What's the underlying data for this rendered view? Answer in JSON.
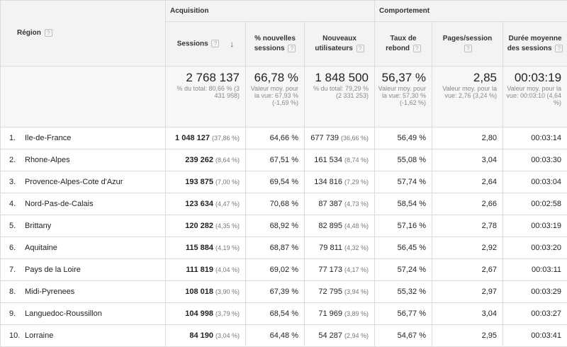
{
  "header": {
    "region_label": "Région",
    "group_acquisition": "Acquisition",
    "group_behavior": "Comportement",
    "help_glyph": "?",
    "sort_glyph": "↓",
    "columns": [
      {
        "label": "Sessions"
      },
      {
        "label": "% nouvelles sessions"
      },
      {
        "label": "Nouveaux utilisateurs"
      },
      {
        "label": "Taux de rebond"
      },
      {
        "label": "Pages/session"
      },
      {
        "label": "Durée moyenne des sessions"
      }
    ]
  },
  "totals": [
    {
      "value": "2 768 137",
      "sub": "% du total: 80,66 % (3 431 958)"
    },
    {
      "value": "66,78 %",
      "sub": "Valeur moy. pour la vue: 67,93 % (-1,69 %)"
    },
    {
      "value": "1 848 500",
      "sub": "% du total: 79,29 % (2 331 253)"
    },
    {
      "value": "56,37 %",
      "sub": "Valeur moy. pour la vue: 57,30 % (-1,62 %)"
    },
    {
      "value": "2,85",
      "sub": "Valeur moy. pour la vue: 2,76 (3,24 %)"
    },
    {
      "value": "00:03:19",
      "sub": "Valeur moy. pour la vue: 00:03:10 (4,64 %)"
    }
  ],
  "rows": [
    {
      "index": "1.",
      "region": "Ile-de-France",
      "sessions": "1 048 127",
      "sessions_pct": "(37,86 %)",
      "new_sessions": "64,66 %",
      "new_users": "677 739",
      "new_users_pct": "(36,66 %)",
      "bounce": "56,49 %",
      "pages": "2,80",
      "duration": "00:03:14"
    },
    {
      "index": "2.",
      "region": "Rhone-Alpes",
      "sessions": "239 262",
      "sessions_pct": "(8,64 %)",
      "new_sessions": "67,51 %",
      "new_users": "161 534",
      "new_users_pct": "(8,74 %)",
      "bounce": "55,08 %",
      "pages": "3,04",
      "duration": "00:03:30"
    },
    {
      "index": "3.",
      "region": "Provence-Alpes-Cote d'Azur",
      "sessions": "193 875",
      "sessions_pct": "(7,00 %)",
      "new_sessions": "69,54 %",
      "new_users": "134 816",
      "new_users_pct": "(7,29 %)",
      "bounce": "57,74 %",
      "pages": "2,64",
      "duration": "00:03:04"
    },
    {
      "index": "4.",
      "region": "Nord-Pas-de-Calais",
      "sessions": "123 634",
      "sessions_pct": "(4,47 %)",
      "new_sessions": "70,68 %",
      "new_users": "87 387",
      "new_users_pct": "(4,73 %)",
      "bounce": "58,54 %",
      "pages": "2,66",
      "duration": "00:02:58"
    },
    {
      "index": "5.",
      "region": "Brittany",
      "sessions": "120 282",
      "sessions_pct": "(4,35 %)",
      "new_sessions": "68,92 %",
      "new_users": "82 895",
      "new_users_pct": "(4,48 %)",
      "bounce": "57,16 %",
      "pages": "2,78",
      "duration": "00:03:19"
    },
    {
      "index": "6.",
      "region": "Aquitaine",
      "sessions": "115 884",
      "sessions_pct": "(4,19 %)",
      "new_sessions": "68,87 %",
      "new_users": "79 811",
      "new_users_pct": "(4,32 %)",
      "bounce": "56,45 %",
      "pages": "2,92",
      "duration": "00:03:20"
    },
    {
      "index": "7.",
      "region": "Pays de la Loire",
      "sessions": "111 819",
      "sessions_pct": "(4,04 %)",
      "new_sessions": "69,02 %",
      "new_users": "77 173",
      "new_users_pct": "(4,17 %)",
      "bounce": "57,24 %",
      "pages": "2,67",
      "duration": "00:03:11"
    },
    {
      "index": "8.",
      "region": "Midi-Pyrenees",
      "sessions": "108 018",
      "sessions_pct": "(3,90 %)",
      "new_sessions": "67,39 %",
      "new_users": "72 795",
      "new_users_pct": "(3,94 %)",
      "bounce": "55,32 %",
      "pages": "2,97",
      "duration": "00:03:29"
    },
    {
      "index": "9.",
      "region": "Languedoc-Roussillon",
      "sessions": "104 998",
      "sessions_pct": "(3,79 %)",
      "new_sessions": "68,54 %",
      "new_users": "71 969",
      "new_users_pct": "(3,89 %)",
      "bounce": "56,77 %",
      "pages": "3,04",
      "duration": "00:03:27"
    },
    {
      "index": "10.",
      "region": "Lorraine",
      "sessions": "84 190",
      "sessions_pct": "(3,04 %)",
      "new_sessions": "64,48 %",
      "new_users": "54 287",
      "new_users_pct": "(2,94 %)",
      "bounce": "54,67 %",
      "pages": "2,95",
      "duration": "00:03:41"
    }
  ]
}
